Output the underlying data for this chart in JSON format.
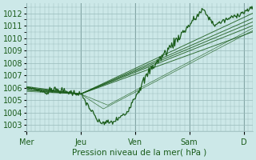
{
  "title": "",
  "xlabel": "Pression niveau de la mer( hPa )",
  "ylabel": "",
  "bg_color": "#cce8e8",
  "grid_color": "#99bbbb",
  "line_color": "#1a5c1a",
  "ylim": [
    1002.5,
    1012.8
  ],
  "yticks": [
    1003,
    1004,
    1005,
    1006,
    1007,
    1008,
    1009,
    1010,
    1011,
    1012
  ],
  "x_day_labels": [
    "Mer",
    "Jeu",
    "Ven",
    "Sam",
    "D"
  ],
  "x_day_positions": [
    0,
    24,
    48,
    72,
    96
  ],
  "xlim": [
    0,
    100
  ]
}
